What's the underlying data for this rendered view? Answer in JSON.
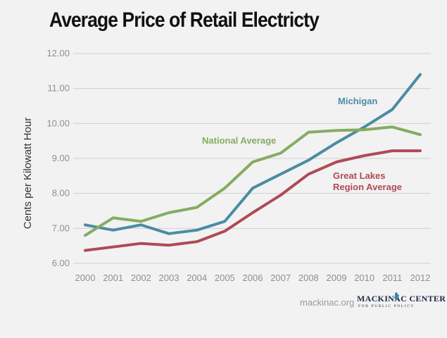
{
  "header": {
    "title": "Average Price of Retail Electricty"
  },
  "footer": {
    "url": "mackinac.org",
    "logo_text": "MACKINAC CENTER",
    "logo_subtext": "FOR PUBLIC POLICY"
  },
  "colors": {
    "background": "#f2f2f2",
    "michigan": "#4b8ca4",
    "national": "#85ac61",
    "great_lakes": "#b04a55",
    "grid": "#d0d0d0"
  },
  "chart_data": {
    "type": "line",
    "title": "Average Price of Retail Electricty",
    "xlabel": "",
    "ylabel": "Cents per Kilowatt Hour",
    "x": [
      "2000",
      "2001",
      "2002",
      "2003",
      "2004",
      "2005",
      "2006",
      "2007",
      "2008",
      "2009",
      "2010",
      "2011",
      "2012"
    ],
    "y_ticks": [
      "6.00",
      "7.00",
      "8.00",
      "9.00",
      "10.00",
      "11.00",
      "12.00"
    ],
    "ylim": [
      6,
      12
    ],
    "grid": "horizontal",
    "series": [
      {
        "name": "Michigan",
        "color_key": "michigan",
        "values": [
          7.1,
          6.95,
          7.1,
          6.85,
          6.95,
          7.2,
          8.15,
          8.55,
          8.95,
          9.45,
          9.9,
          10.4,
          11.4
        ]
      },
      {
        "name": "National Average",
        "color_key": "national",
        "values": [
          6.8,
          7.3,
          7.2,
          7.45,
          7.6,
          8.15,
          8.9,
          9.15,
          9.75,
          9.8,
          9.82,
          9.9,
          9.68
        ]
      },
      {
        "name": "Great Lakes Region Average",
        "label_lines": [
          "Great Lakes",
          "Region Average"
        ],
        "color_key": "great_lakes",
        "values": [
          6.37,
          6.47,
          6.57,
          6.52,
          6.62,
          6.92,
          7.45,
          7.95,
          8.55,
          8.9,
          9.08,
          9.22,
          9.22
        ]
      }
    ]
  }
}
